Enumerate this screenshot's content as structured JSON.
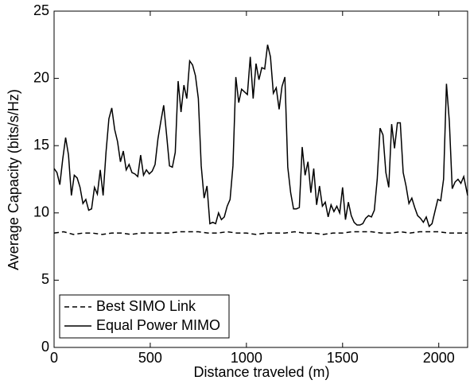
{
  "chart_data": {
    "type": "line",
    "xlabel": "Distance traveled (m)",
    "ylabel": "Average Capacity (bits/s/Hz)",
    "xlim": [
      0,
      2150
    ],
    "ylim": [
      0,
      25
    ],
    "xticks": [
      0,
      500,
      1000,
      1500,
      2000
    ],
    "yticks": [
      0,
      5,
      10,
      15,
      20,
      25
    ],
    "grid": false,
    "legend": "lower left",
    "series": [
      {
        "name": "Best SIMO Link",
        "color": "#000000",
        "dash": "dashed",
        "x": [
          0,
          50,
          100,
          150,
          200,
          250,
          300,
          350,
          400,
          450,
          500,
          550,
          600,
          650,
          700,
          750,
          800,
          850,
          900,
          950,
          1000,
          1050,
          1100,
          1150,
          1200,
          1250,
          1300,
          1350,
          1400,
          1450,
          1500,
          1550,
          1600,
          1650,
          1700,
          1750,
          1800,
          1850,
          1900,
          1950,
          2000,
          2050,
          2100,
          2150
        ],
        "values": [
          8.5,
          8.6,
          8.4,
          8.5,
          8.5,
          8.4,
          8.5,
          8.5,
          8.4,
          8.5,
          8.5,
          8.5,
          8.5,
          8.6,
          8.6,
          8.6,
          8.5,
          8.5,
          8.6,
          8.5,
          8.5,
          8.4,
          8.5,
          8.5,
          8.5,
          8.6,
          8.5,
          8.5,
          8.4,
          8.5,
          8.5,
          8.6,
          8.6,
          8.6,
          8.5,
          8.5,
          8.6,
          8.5,
          8.6,
          8.6,
          8.6,
          8.5,
          8.5,
          8.5
        ]
      },
      {
        "name": "Equal Power MIMO",
        "color": "#000000",
        "dash": "solid",
        "x": [
          0,
          15,
          30,
          45,
          60,
          75,
          90,
          105,
          120,
          135,
          150,
          165,
          180,
          195,
          210,
          225,
          240,
          255,
          270,
          285,
          300,
          315,
          330,
          345,
          360,
          375,
          390,
          405,
          420,
          435,
          450,
          465,
          480,
          495,
          510,
          525,
          540,
          555,
          570,
          585,
          600,
          615,
          630,
          645,
          660,
          675,
          690,
          705,
          720,
          735,
          750,
          765,
          780,
          795,
          810,
          825,
          840,
          855,
          870,
          885,
          900,
          915,
          930,
          945,
          960,
          975,
          990,
          1005,
          1020,
          1035,
          1050,
          1065,
          1080,
          1095,
          1110,
          1125,
          1140,
          1155,
          1170,
          1185,
          1200,
          1215,
          1230,
          1245,
          1260,
          1275,
          1290,
          1305,
          1320,
          1335,
          1350,
          1365,
          1380,
          1395,
          1410,
          1425,
          1440,
          1455,
          1470,
          1485,
          1500,
          1515,
          1530,
          1545,
          1560,
          1575,
          1590,
          1605,
          1620,
          1635,
          1650,
          1665,
          1680,
          1695,
          1710,
          1725,
          1740,
          1755,
          1770,
          1785,
          1800,
          1815,
          1830,
          1845,
          1860,
          1875,
          1890,
          1905,
          1920,
          1935,
          1950,
          1965,
          1980,
          1995,
          2010,
          2025,
          2040,
          2055,
          2070,
          2085,
          2100,
          2115,
          2130,
          2150
        ],
        "values": [
          13.3,
          13,
          12.1,
          14,
          15.6,
          14.3,
          11.3,
          12.8,
          12.6,
          11.9,
          10.7,
          11,
          10.2,
          10.3,
          11.9,
          11.4,
          13.2,
          11.3,
          14.5,
          17,
          17.8,
          16.2,
          15.3,
          13.8,
          14.6,
          13.2,
          13.6,
          13,
          12.9,
          12.7,
          14.3,
          12.8,
          13.2,
          12.9,
          13.1,
          13.6,
          15.5,
          16.8,
          18,
          15.8,
          13.5,
          13.4,
          14.5,
          19.8,
          17.5,
          19.5,
          18.5,
          21.3,
          21,
          20.2,
          18.5,
          13.5,
          11.1,
          12,
          9.2,
          9.3,
          9.2,
          10,
          9.5,
          9.7,
          10.5,
          11,
          13.5,
          20.1,
          18.2,
          19.2,
          19,
          18.8,
          21.6,
          18.5,
          21.1,
          19.9,
          20.8,
          20.7,
          22.5,
          21.6,
          18.9,
          19.3,
          17.7,
          19.4,
          20.1,
          13.4,
          11.5,
          10.3,
          10.3,
          10.4,
          14.9,
          12.8,
          13.8,
          11.5,
          13.3,
          10.6,
          12,
          10.5,
          10.8,
          9.7,
          10.6,
          10.1,
          10.5,
          10,
          11.9,
          9.5,
          10.8,
          9.8,
          9.3,
          9.1,
          9.1,
          9.2,
          9.6,
          9.8,
          9.7,
          10.2,
          12.5,
          16.3,
          15.8,
          13,
          11.9,
          16.6,
          14.8,
          16.7,
          16.7,
          13,
          12,
          10.7,
          11.1,
          10.4,
          9.8,
          9.6,
          9.3,
          9.7,
          9,
          9.2,
          10.1,
          11,
          10.9,
          12.5,
          19.6,
          16.8,
          11.8,
          12.3,
          12.5,
          12.2,
          12.7,
          11.3
        ]
      }
    ]
  }
}
